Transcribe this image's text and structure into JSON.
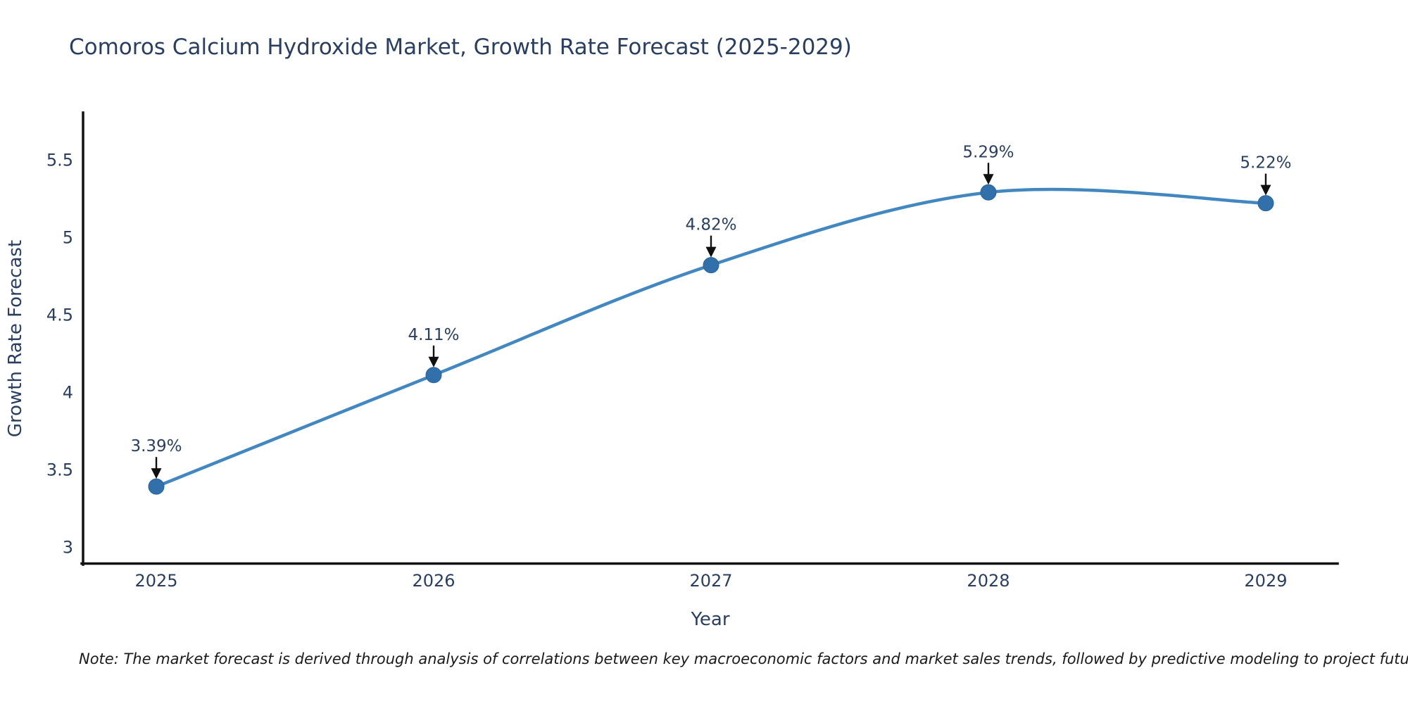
{
  "title": "Comoros Calcium Hydroxide Market, Growth Rate Forecast (2025-2029)",
  "note": "Note: The market forecast is derived through analysis of correlations between key macroeconomic factors and market sales trends, followed by predictive modeling to project future sales",
  "chart_data": {
    "type": "line",
    "title": "Comoros Calcium Hydroxide Market, Growth Rate Forecast (2025-2029)",
    "xlabel": "Year",
    "ylabel": "Growth Rate Forecast",
    "x": [
      2025,
      2026,
      2027,
      2028,
      2029
    ],
    "y": [
      3.39,
      4.11,
      4.82,
      5.29,
      5.22
    ],
    "point_labels": [
      "3.39%",
      "4.11%",
      "4.82%",
      "5.29%",
      "5.22%"
    ],
    "x_tick_values": [
      2025,
      2026,
      2027,
      2028,
      2029
    ],
    "x_tick_labels": [
      "2025",
      "2026",
      "2027",
      "2028",
      "2029"
    ],
    "y_tick_values": [
      3,
      3.5,
      4,
      4.5,
      5,
      5.5
    ],
    "y_tick_labels": [
      "3",
      "3.5",
      "4",
      "4.5",
      "5",
      "5.5"
    ],
    "xlim": [
      2024.736,
      2029.259
    ],
    "ylim": [
      2.886,
      5.805
    ],
    "grid": false,
    "legend": false,
    "line_shape": "spline",
    "annotations_have_arrows": true,
    "colors": {
      "line": "#4287c0",
      "marker": "#3170ab",
      "marker_edge": "#2a6496",
      "axis": "#111111",
      "text": "#2a3f5f",
      "arrow": "#101010",
      "note": "#1a1a1a",
      "background": "#ffffff"
    }
  }
}
